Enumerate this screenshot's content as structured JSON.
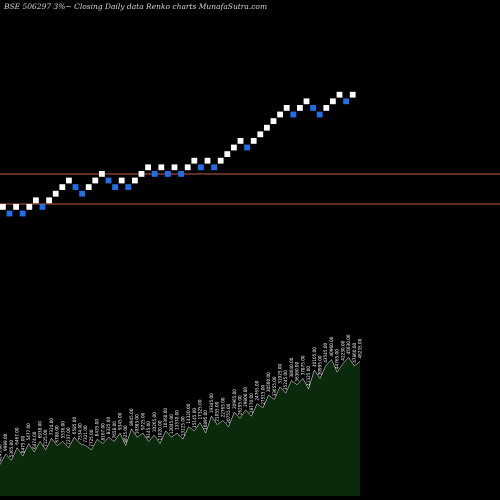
{
  "chart_data": {
    "type": "renko",
    "title": "BSE 506297 3%~ Closing Daily data Renko charts MunafaSutra.com",
    "colors": {
      "background": "#000000",
      "up_brick": "#ffffff",
      "down_brick": "#1e6fe8",
      "reference_line": "#c0603a",
      "volume_fill": "#0b2a0b",
      "volume_line": "#ffffff"
    },
    "reference_levels": [
      174,
      204
    ],
    "bricks": [
      {
        "col": 0,
        "level": 0,
        "dir": "up"
      },
      {
        "col": 1,
        "level": -1,
        "dir": "down"
      },
      {
        "col": 2,
        "level": 0,
        "dir": "up"
      },
      {
        "col": 3,
        "level": -1,
        "dir": "down"
      },
      {
        "col": 4,
        "level": 0,
        "dir": "up"
      },
      {
        "col": 5,
        "level": 1,
        "dir": "up"
      },
      {
        "col": 6,
        "level": 0,
        "dir": "down"
      },
      {
        "col": 7,
        "level": 1,
        "dir": "up"
      },
      {
        "col": 8,
        "level": 2,
        "dir": "up"
      },
      {
        "col": 9,
        "level": 3,
        "dir": "up"
      },
      {
        "col": 10,
        "level": 4,
        "dir": "up"
      },
      {
        "col": 11,
        "level": 3,
        "dir": "down"
      },
      {
        "col": 12,
        "level": 2,
        "dir": "down"
      },
      {
        "col": 13,
        "level": 3,
        "dir": "up"
      },
      {
        "col": 14,
        "level": 4,
        "dir": "up"
      },
      {
        "col": 15,
        "level": 5,
        "dir": "up"
      },
      {
        "col": 16,
        "level": 4,
        "dir": "down"
      },
      {
        "col": 17,
        "level": 3,
        "dir": "down"
      },
      {
        "col": 18,
        "level": 4,
        "dir": "up"
      },
      {
        "col": 19,
        "level": 3,
        "dir": "down"
      },
      {
        "col": 20,
        "level": 4,
        "dir": "up"
      },
      {
        "col": 21,
        "level": 5,
        "dir": "up"
      },
      {
        "col": 22,
        "level": 6,
        "dir": "up"
      },
      {
        "col": 23,
        "level": 5,
        "dir": "down"
      },
      {
        "col": 24,
        "level": 6,
        "dir": "up"
      },
      {
        "col": 25,
        "level": 5,
        "dir": "down"
      },
      {
        "col": 26,
        "level": 6,
        "dir": "up"
      },
      {
        "col": 27,
        "level": 5,
        "dir": "down"
      },
      {
        "col": 28,
        "level": 6,
        "dir": "up"
      },
      {
        "col": 29,
        "level": 7,
        "dir": "up"
      },
      {
        "col": 30,
        "level": 6,
        "dir": "down"
      },
      {
        "col": 31,
        "level": 7,
        "dir": "up"
      },
      {
        "col": 32,
        "level": 6,
        "dir": "down"
      },
      {
        "col": 33,
        "level": 7,
        "dir": "up"
      },
      {
        "col": 34,
        "level": 8,
        "dir": "up"
      },
      {
        "col": 35,
        "level": 9,
        "dir": "up"
      },
      {
        "col": 36,
        "level": 10,
        "dir": "up"
      },
      {
        "col": 37,
        "level": 9,
        "dir": "down"
      },
      {
        "col": 38,
        "level": 10,
        "dir": "up"
      },
      {
        "col": 39,
        "level": 11,
        "dir": "up"
      },
      {
        "col": 40,
        "level": 12,
        "dir": "up"
      },
      {
        "col": 41,
        "level": 13,
        "dir": "up"
      },
      {
        "col": 42,
        "level": 14,
        "dir": "up"
      },
      {
        "col": 43,
        "level": 15,
        "dir": "up"
      },
      {
        "col": 44,
        "level": 14,
        "dir": "down"
      },
      {
        "col": 45,
        "level": 15,
        "dir": "up"
      },
      {
        "col": 46,
        "level": 16,
        "dir": "up"
      },
      {
        "col": 47,
        "level": 15,
        "dir": "down"
      },
      {
        "col": 48,
        "level": 14,
        "dir": "down"
      },
      {
        "col": 49,
        "level": 15,
        "dir": "up"
      },
      {
        "col": 50,
        "level": 16,
        "dir": "up"
      },
      {
        "col": 51,
        "level": 17,
        "dir": "up"
      },
      {
        "col": 52,
        "level": 16,
        "dir": "down"
      },
      {
        "col": 53,
        "level": 17,
        "dir": "up"
      }
    ],
    "volume": {
      "values": [
        30,
        40,
        34,
        46,
        38,
        50,
        42,
        52,
        44,
        55,
        48,
        52,
        46,
        56,
        50,
        48,
        44,
        54,
        50,
        56,
        52,
        60,
        48,
        64,
        56,
        60,
        52,
        58,
        50,
        62,
        56,
        60,
        54,
        66,
        62,
        70,
        60,
        76,
        68,
        72,
        66,
        80,
        74,
        82,
        76,
        88,
        84,
        96,
        92,
        104,
        98,
        110,
        106,
        112,
        102,
        120,
        112,
        124,
        130,
        118,
        126,
        132,
        124,
        128
      ],
      "labels": [
        "4245.00",
        "9989.00",
        "5365.00",
        "6467.00",
        "8475.00",
        "5477.00",
        "6474.00",
        "6938.00",
        "7125.00",
        "7324.00",
        "6788.00",
        "5536.00",
        "7237.00",
        "6585.00",
        "7534.00",
        "7321.00",
        "7725.00",
        "8435.00",
        "8167.00",
        "8325.00",
        "7658.00",
        "9345.00",
        "8625.00",
        "8945.00",
        "10385.00",
        "9725.00",
        "9145.00",
        "10265.00",
        "11020.00",
        "10360.00",
        "12045.00",
        "13570.00",
        "13125.00",
        "14320.00",
        "15145.00",
        "17325.00",
        "16895.00",
        "19345.00",
        "21055.00",
        "22765.00",
        "20755.00",
        "20965.00",
        "26295.00",
        "29800.00",
        "28770.00",
        "24765.00",
        "27515.00",
        "30560.00",
        "33655.00",
        "31925.00",
        "35245.00",
        "38640.00",
        "36360.00",
        "37875.00",
        "41325.00",
        "40105.00",
        "39995.00",
        "43545.00",
        "40960.00",
        "44765.00",
        "42230.00",
        "45630.00",
        "47860.00",
        "46235.00"
      ]
    }
  }
}
